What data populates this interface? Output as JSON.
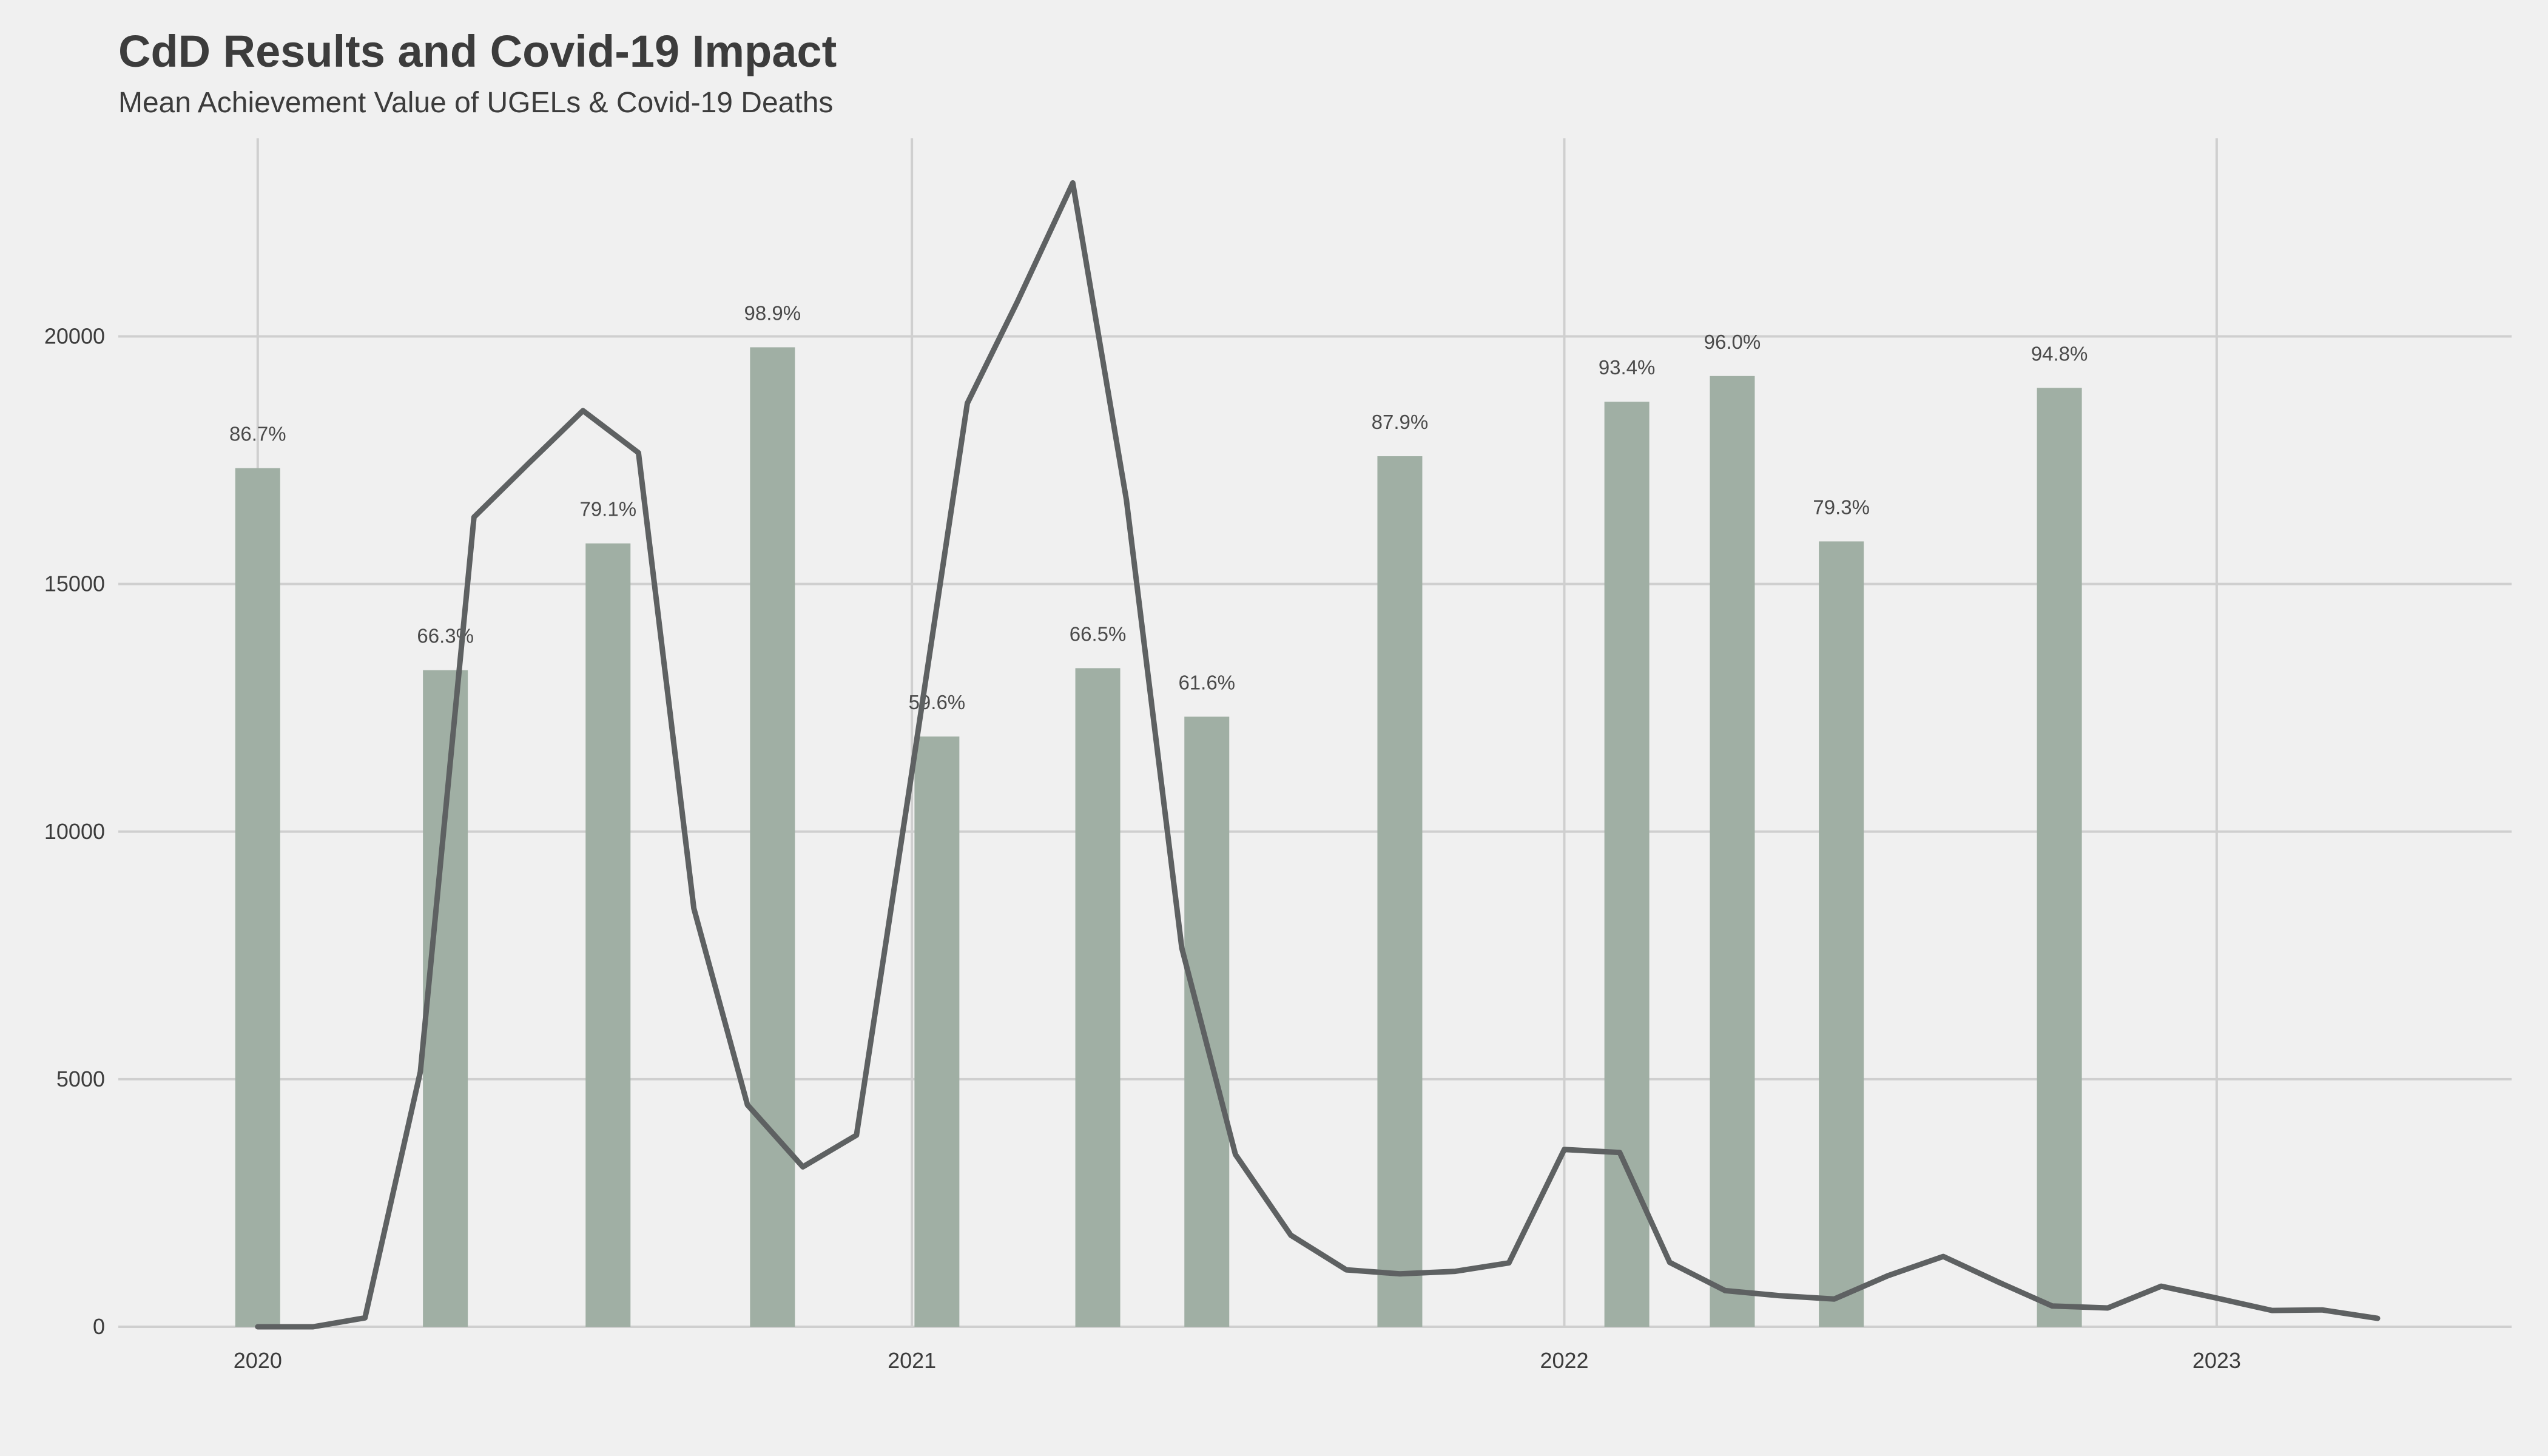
{
  "title": "CdD Results and Covid-19 Impact",
  "subtitle": "Mean Achievement Value of UGELs & Covid-19 Deaths",
  "chart_data": {
    "type": "bar+line",
    "title": "CdD Results and Covid-19 Impact",
    "subtitle": "Mean Achievement Value of UGELs & Covid-19 Deaths",
    "xlabel": "",
    "ylabel": "",
    "ylim": [
      0,
      24000
    ],
    "xlim": [
      "2019-10-15",
      "2023-06-15"
    ],
    "x_ticks": [
      "2020-01-01",
      "2021-01-01",
      "2022-01-01",
      "2023-01-01"
    ],
    "x_tick_labels": [
      "2020",
      "2021",
      "2022",
      "2023"
    ],
    "y_ticks": [
      0,
      5000,
      10000,
      15000,
      20000
    ],
    "y_tick_labels": [
      "0",
      "5000",
      "10000",
      "15000",
      "20000"
    ],
    "grid": true,
    "colors": {
      "bar": "#a0afa4",
      "line": "#5e6162",
      "grid": "#cfcfcf",
      "background": "#f0f0f0"
    },
    "bars": [
      {
        "date": "2020-01-01",
        "value": 17340,
        "label": "86.7%"
      },
      {
        "date": "2020-04-15",
        "value": 13260,
        "label": "66.3%"
      },
      {
        "date": "2020-07-15",
        "value": 15820,
        "label": "79.1%"
      },
      {
        "date": "2020-10-15",
        "value": 19780,
        "label": "98.9%"
      },
      {
        "date": "2021-01-15",
        "value": 11920,
        "label": "59.6%"
      },
      {
        "date": "2021-04-15",
        "value": 13300,
        "label": "66.5%"
      },
      {
        "date": "2021-06-15",
        "value": 12320,
        "label": "61.6%"
      },
      {
        "date": "2021-10-01",
        "value": 17580,
        "label": "87.9%"
      },
      {
        "date": "2022-02-05",
        "value": 18680,
        "label": "93.4%"
      },
      {
        "date": "2022-04-05",
        "value": 19200,
        "label": "96.0%"
      },
      {
        "date": "2022-06-05",
        "value": 15860,
        "label": "79.3%"
      },
      {
        "date": "2022-10-05",
        "value": 18960,
        "label": "94.8%"
      }
    ],
    "line": [
      {
        "date": "2020-01-01",
        "value": 0
      },
      {
        "date": "2020-02-01",
        "value": 0
      },
      {
        "date": "2020-03-01",
        "value": 180
      },
      {
        "date": "2020-04-01",
        "value": 5150
      },
      {
        "date": "2020-05-01",
        "value": 16350
      },
      {
        "date": "2020-06-01",
        "value": 17450
      },
      {
        "date": "2020-07-01",
        "value": 18500
      },
      {
        "date": "2020-08-01",
        "value": 17650
      },
      {
        "date": "2020-09-01",
        "value": 8450
      },
      {
        "date": "2020-10-01",
        "value": 4480
      },
      {
        "date": "2020-11-01",
        "value": 3230
      },
      {
        "date": "2020-12-01",
        "value": 3870
      },
      {
        "date": "2021-01-01",
        "value": 11200
      },
      {
        "date": "2021-02-01",
        "value": 18650
      },
      {
        "date": "2021-03-01",
        "value": 20700
      },
      {
        "date": "2021-04-01",
        "value": 23100
      },
      {
        "date": "2021-05-01",
        "value": 16700
      },
      {
        "date": "2021-06-01",
        "value": 7650
      },
      {
        "date": "2021-07-01",
        "value": 3480
      },
      {
        "date": "2021-08-01",
        "value": 1850
      },
      {
        "date": "2021-09-01",
        "value": 1150
      },
      {
        "date": "2021-10-01",
        "value": 1070
      },
      {
        "date": "2021-11-01",
        "value": 1120
      },
      {
        "date": "2021-12-01",
        "value": 1290
      },
      {
        "date": "2022-01-01",
        "value": 3580
      },
      {
        "date": "2022-02-01",
        "value": 3520
      },
      {
        "date": "2022-03-01",
        "value": 1300
      },
      {
        "date": "2022-04-01",
        "value": 730
      },
      {
        "date": "2022-05-01",
        "value": 630
      },
      {
        "date": "2022-06-01",
        "value": 560
      },
      {
        "date": "2022-07-01",
        "value": 1030
      },
      {
        "date": "2022-08-01",
        "value": 1420
      },
      {
        "date": "2022-09-01",
        "value": 900
      },
      {
        "date": "2022-10-01",
        "value": 420
      },
      {
        "date": "2022-11-01",
        "value": 380
      },
      {
        "date": "2022-12-01",
        "value": 820
      },
      {
        "date": "2023-01-01",
        "value": 580
      },
      {
        "date": "2023-02-01",
        "value": 330
      },
      {
        "date": "2023-03-01",
        "value": 340
      },
      {
        "date": "2023-04-01",
        "value": 170
      }
    ]
  }
}
